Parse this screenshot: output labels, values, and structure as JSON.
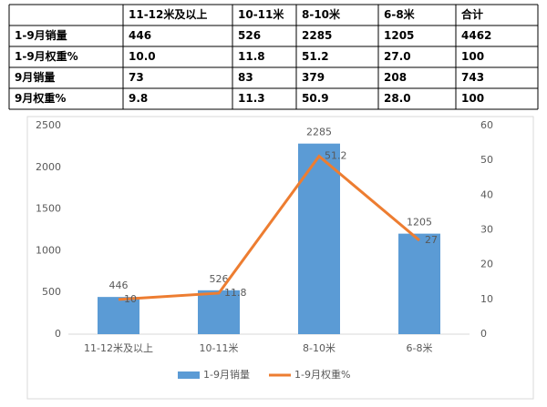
{
  "table": {
    "header": [
      "11-12米及以上",
      "10-11米",
      "8-10米",
      "6-8米",
      "合计"
    ],
    "rows": [
      [
        "1-9月销量",
        "446",
        "526",
        "2285",
        "1205",
        "4462"
      ],
      [
        "1-9月权重%",
        "10.0",
        "11.8",
        "51.2",
        "27.0",
        "100"
      ],
      [
        "9月销量",
        "73",
        "83",
        "379",
        "208",
        "743"
      ],
      [
        "9月权重%",
        "9.8",
        "11.3",
        "50.9",
        "28.0",
        "100"
      ]
    ]
  },
  "chart_data": {
    "type": "bar",
    "categories": [
      "11-12米及以上",
      "10-11米",
      "8-10米",
      "6-8米"
    ],
    "series": [
      {
        "name": "1-9月销量",
        "type": "bar",
        "color": "#5b9bd5",
        "values": [
          446,
          526,
          2285,
          1205
        ]
      },
      {
        "name": "1-9月权重%",
        "type": "line",
        "axis": "y2",
        "color": "#ed7d31",
        "values": [
          10,
          11.8,
          51.2,
          27
        ]
      }
    ],
    "ylim": [
      0,
      2500
    ],
    "yticks": [
      0,
      500,
      1000,
      1500,
      2000,
      2500
    ],
    "y2lim": [
      0,
      60
    ],
    "y2ticks": [
      0,
      10,
      20,
      30,
      40,
      50,
      60
    ],
    "grid": false,
    "legend": "bottom"
  }
}
